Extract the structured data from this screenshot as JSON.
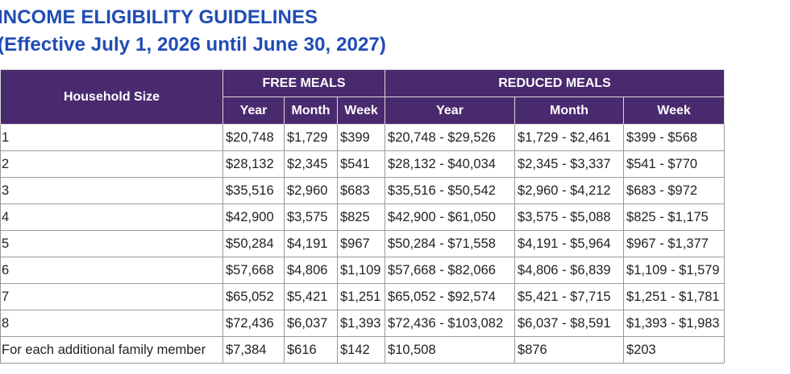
{
  "title": "INCOME ELIGIBILITY GUIDELINES",
  "subtitle": "(Effective July 1, 2026 until June 30, 2027)",
  "table": {
    "household_header": "Household Size",
    "free_header": "FREE MEALS",
    "reduced_header": "REDUCED MEALS",
    "sub_headers": [
      "Year",
      "Month",
      "Week",
      "Year",
      "Month",
      "Week"
    ],
    "rows": [
      [
        "1",
        "$20,748",
        "$1,729",
        "$399",
        "$20,748 - $29,526",
        "$1,729 - $2,461",
        "$399 - $568"
      ],
      [
        "2",
        "$28,132",
        "$2,345",
        "$541",
        "$28,132 - $40,034",
        "$2,345 - $3,337",
        "$541 - $770"
      ],
      [
        "3",
        "$35,516",
        "$2,960",
        "$683",
        "$35,516 - $50,542",
        "$2,960 - $4,212",
        "$683 - $972"
      ],
      [
        "4",
        "$42,900",
        "$3,575",
        "$825",
        "$42,900 - $61,050",
        "$3,575 - $5,088",
        "$825 - $1,175"
      ],
      [
        "5",
        "$50,284",
        "$4,191",
        "$967",
        "$50,284 - $71,558",
        "$4,191 - $5,964",
        "$967 - $1,377"
      ],
      [
        "6",
        "$57,668",
        "$4,806",
        "$1,109",
        "$57,668 - $82,066",
        "$4,806 - $6,839",
        "$1,109 - $1,579"
      ],
      [
        "7",
        "$65,052",
        "$5,421",
        "$1,251",
        "$65,052 - $92,574",
        "$5,421 - $7,715",
        "$1,251 - $1,781"
      ],
      [
        "8",
        "$72,436",
        "$6,037",
        "$1,393",
        "$72,436 - $103,082",
        "$6,037 - $8,591",
        "$1,393 - $1,983"
      ],
      [
        "For each additional family member",
        "$7,384",
        "$616",
        "$142",
        "$10,508",
        "$876",
        "$203"
      ]
    ]
  },
  "colors": {
    "heading": "#1f4cb5",
    "header_bg": "#4a2a6e",
    "header_text": "#ffffff"
  }
}
